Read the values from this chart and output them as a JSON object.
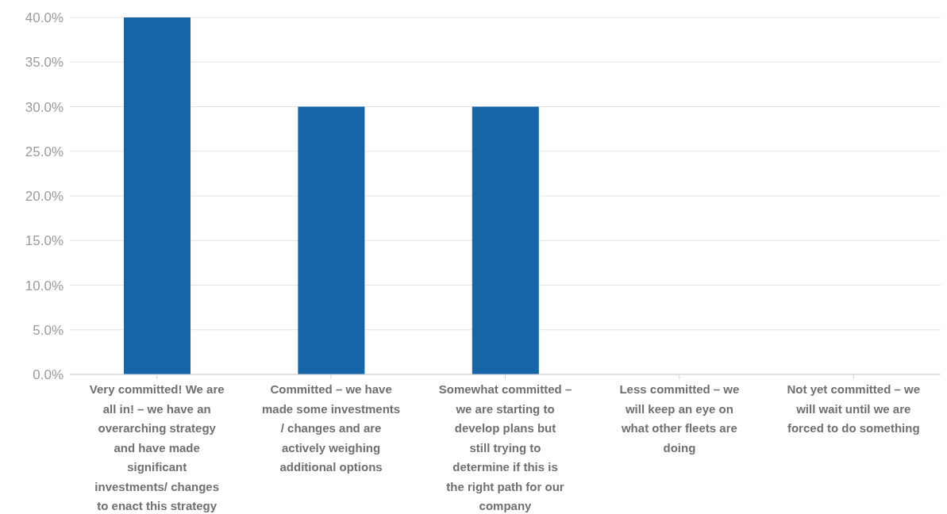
{
  "chart_data": {
    "type": "bar",
    "categories": [
      "Very committed! We are all in! – we have an overarching strategy and have made significant investments/ changes to enact this strategy",
      "Committed – we have made some investments / changes and are actively weighing additional options",
      "Somewhat committed – we are starting to develop plans but still trying to determine if this is the right path for our company",
      "Less committed – we will keep an eye on what other fleets are doing",
      "Not yet committed – we will wait until we are forced to do something"
    ],
    "values": [
      40,
      30,
      30,
      0,
      0
    ],
    "color": "#1565a8",
    "ylim": [
      0,
      40
    ],
    "yticks": [
      {
        "value": 0,
        "label": "0.0%"
      },
      {
        "value": 5,
        "label": "5.0%"
      },
      {
        "value": 10,
        "label": "10.0%"
      },
      {
        "value": 15,
        "label": "15.0%"
      },
      {
        "value": 20,
        "label": "20.0%"
      },
      {
        "value": 25,
        "label": "25.0%"
      },
      {
        "value": 30,
        "label": "30.0%"
      },
      {
        "value": 35,
        "label": "35.0%"
      },
      {
        "value": 40,
        "label": "40.0%"
      }
    ],
    "grid": "y",
    "legend": false
  }
}
